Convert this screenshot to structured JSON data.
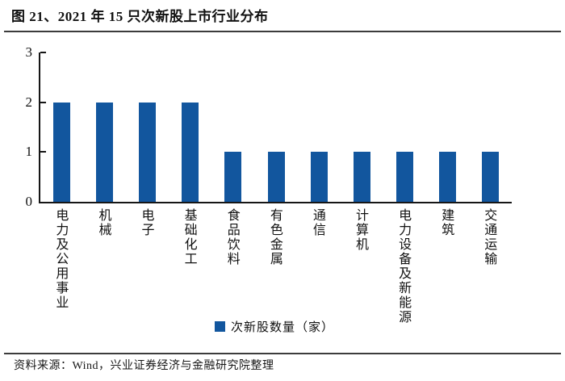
{
  "header": {
    "title": "图 21、2021 年 15 只次新股上市行业分布"
  },
  "chart_data": {
    "type": "bar",
    "title": "2021 年 15 只次新股上市行业分布",
    "categories": [
      "电力及公用事业",
      "机械",
      "电子",
      "基础化工",
      "食品饮料",
      "有色金属",
      "通信",
      "计算机",
      "电力设备及新能源",
      "建筑",
      "交通运输"
    ],
    "values": [
      2,
      2,
      2,
      2,
      1,
      1,
      1,
      1,
      1,
      1,
      1
    ],
    "xlabel": "",
    "ylabel": "",
    "ylim": [
      0,
      3
    ],
    "yticks": [
      0,
      1,
      2,
      3
    ],
    "grid": false,
    "legend": [
      "次新股数量（家）"
    ],
    "legend_position": "bottom",
    "bar_color": "#12569E",
    "axis_color": "#161616"
  },
  "footer": {
    "source": "资料来源：Wind，兴业证券经济与金融研究院整理"
  }
}
